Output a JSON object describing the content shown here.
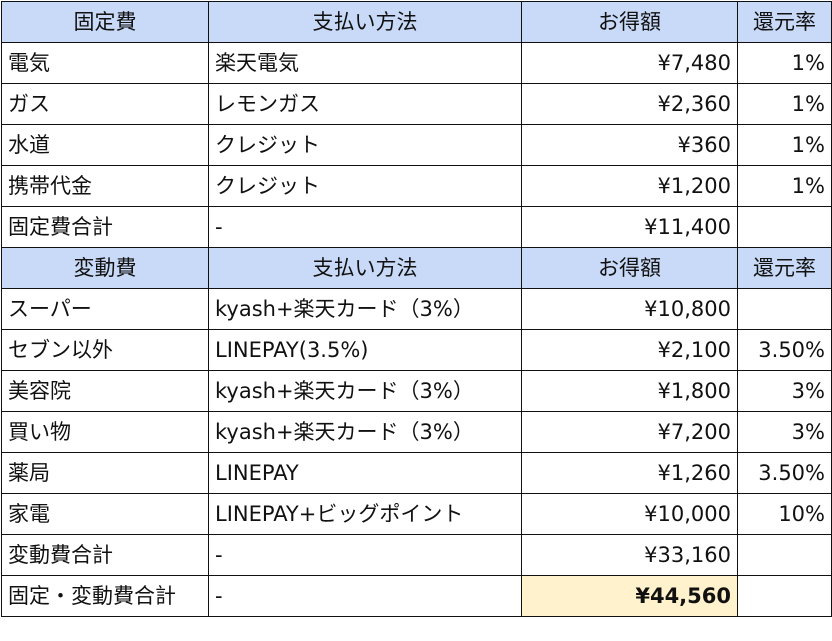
{
  "fixed_header": {
    "category": "固定費",
    "method": "支払い方法",
    "savings": "お得額",
    "rate": "還元率"
  },
  "fixed_rows": [
    {
      "category": "電気",
      "method": "楽天電気",
      "savings": "¥7,480",
      "rate": "1%"
    },
    {
      "category": "ガス",
      "method": "レモンガス",
      "savings": "¥2,360",
      "rate": "1%"
    },
    {
      "category": "水道",
      "method": "クレジット",
      "savings": "¥360",
      "rate": "1%"
    },
    {
      "category": "携帯代金",
      "method": "クレジット",
      "savings": "¥1,200",
      "rate": "1%"
    }
  ],
  "fixed_total": {
    "category": "固定費合計",
    "method": "-",
    "savings": "¥11,400",
    "rate": ""
  },
  "variable_header": {
    "category": "変動費",
    "method": "支払い方法",
    "savings": "お得額",
    "rate": "還元率"
  },
  "variable_rows": [
    {
      "category": "スーパー",
      "method": "kyash+楽天カード（3%）",
      "savings": "¥10,800",
      "rate": ""
    },
    {
      "category": "セブン以外",
      "method": "LINEPAY(3.5%)",
      "savings": "¥2,100",
      "rate": "3.50%"
    },
    {
      "category": "美容院",
      "method": "kyash+楽天カード（3%）",
      "savings": "¥1,800",
      "rate": "3%"
    },
    {
      "category": "買い物",
      "method": "kyash+楽天カード（3%）",
      "savings": "¥7,200",
      "rate": "3%"
    },
    {
      "category": "薬局",
      "method": "LINEPAY",
      "savings": "¥1,260",
      "rate": "3.50%"
    },
    {
      "category": "家電",
      "method": "LINEPAY+ビッグポイント",
      "savings": "¥10,000",
      "rate": "10%"
    }
  ],
  "variable_total": {
    "category": "変動費合計",
    "method": "-",
    "savings": "¥33,160",
    "rate": ""
  },
  "grand_total": {
    "category": "固定・変動費合計",
    "method": "-",
    "savings": "¥44,560",
    "rate": ""
  },
  "colors": {
    "header_bg": "#c9daf8",
    "highlight_bg": "#fff2cc",
    "border": "#111111"
  }
}
